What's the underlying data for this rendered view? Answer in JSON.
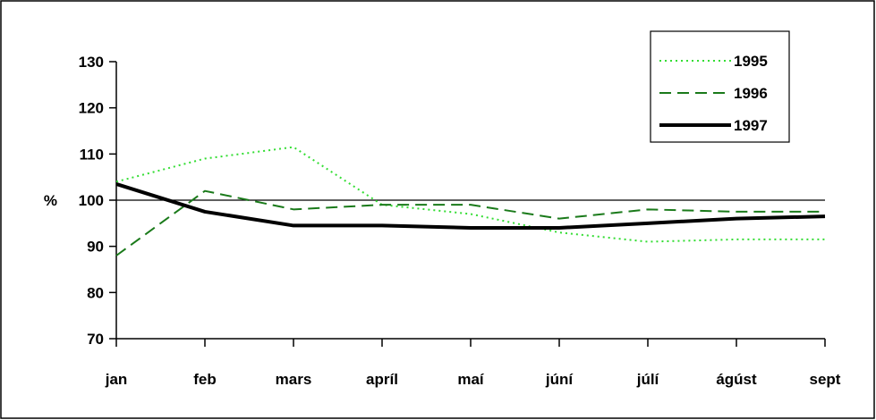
{
  "chart_data": {
    "type": "line",
    "categories": [
      "jan",
      "feb",
      "mars",
      "apríl",
      "maí",
      "júní",
      "júlí",
      "ágúst",
      "sept"
    ],
    "ylabel": "%",
    "yticks": [
      70,
      80,
      90,
      100,
      110,
      120,
      130
    ],
    "ylim": [
      70,
      130
    ],
    "reference_line": 100,
    "grid": false,
    "legend_position": "top-right",
    "series": [
      {
        "name": "1995",
        "values": [
          104,
          109,
          111.5,
          99,
          97,
          93,
          91,
          91.5,
          91.5
        ],
        "style": "dotted",
        "color": "#33dd33"
      },
      {
        "name": "1996",
        "values": [
          88,
          102,
          98,
          99,
          99,
          96,
          98,
          97.5,
          97.5
        ],
        "style": "dashed",
        "color": "#1a7a1a"
      },
      {
        "name": "1997",
        "values": [
          103.5,
          97.5,
          94.5,
          94.5,
          94,
          94,
          95,
          96,
          96.5
        ],
        "style": "solid",
        "color": "#000000"
      }
    ]
  }
}
